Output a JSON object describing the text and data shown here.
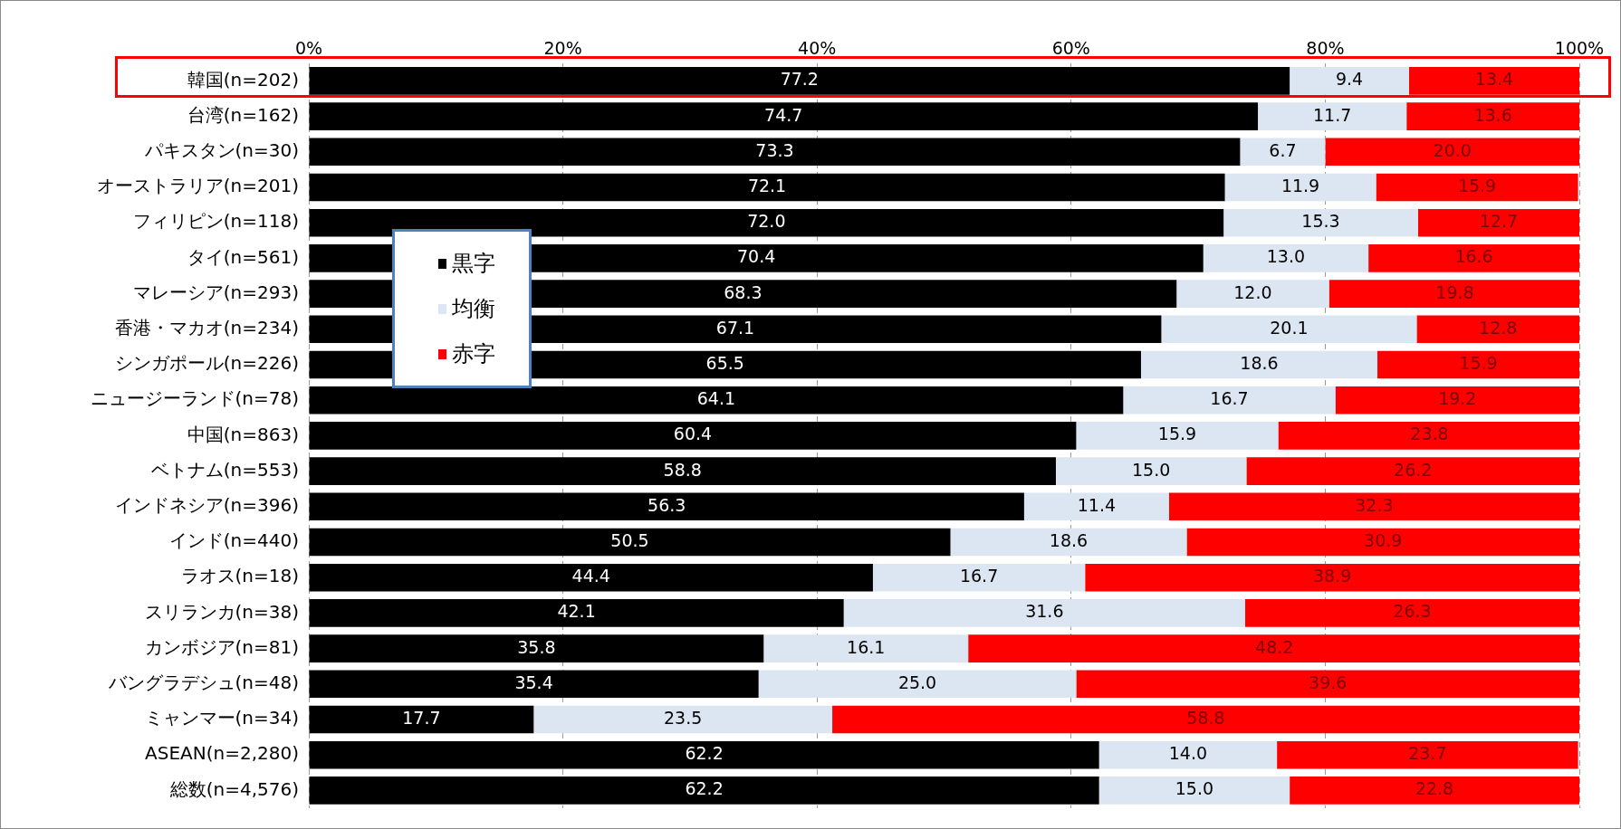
{
  "chart_data": {
    "type": "bar",
    "orientation": "horizontal",
    "stacked": true,
    "categories": [
      "韓国(n=202)",
      "台湾(n=162)",
      "パキスタン(n=30)",
      "オーストラリア(n=201)",
      "フィリピン(n=118)",
      "タイ(n=561)",
      "マレーシア(n=293)",
      "香港・マカオ(n=234)",
      "シンガポール(n=226)",
      "ニュージーランド(n=78)",
      "中国(n=863)",
      "ベトナム(n=553)",
      "インドネシア(n=396)",
      "インド(n=440)",
      "ラオス(n=18)",
      "スリランカ(n=38)",
      "カンボジア(n=81)",
      "バングラデシュ(n=48)",
      "ミャンマー(n=34)",
      "ASEAN(n=2,280)",
      "総数(n=4,576)"
    ],
    "series": [
      {
        "name": "黒字",
        "color": "#000000",
        "values": [
          77.2,
          74.7,
          73.3,
          72.1,
          72.0,
          70.4,
          68.3,
          67.1,
          65.5,
          64.1,
          60.4,
          58.8,
          56.3,
          50.5,
          44.4,
          42.1,
          35.8,
          35.4,
          17.7,
          62.2,
          62.2
        ],
        "value_labels": [
          "77.2",
          "74.7",
          "73.3",
          "72.1",
          "72.0",
          "70.4",
          "68.3",
          "67.1",
          "65.5",
          "64.1",
          "60.4",
          "58.8",
          "56.3",
          "50.5",
          "44.4",
          "42.1",
          "35.8",
          "35.4",
          "17.7",
          "62.2",
          "62.2"
        ]
      },
      {
        "name": "均衡",
        "color": "#dce6f2",
        "values": [
          9.4,
          11.7,
          6.7,
          11.9,
          15.3,
          13.0,
          12.0,
          20.1,
          18.6,
          16.7,
          15.9,
          15.0,
          11.4,
          18.6,
          16.7,
          31.6,
          16.1,
          25.0,
          23.5,
          14.0,
          15.0
        ],
        "value_labels": [
          "9.4",
          "11.7",
          "6.7",
          "11.9",
          "15.3",
          "13.0",
          "12.0",
          "20.1",
          "18.6",
          "16.7",
          "15.9",
          "15.0",
          "11.4",
          "18.6",
          "16.7",
          "31.6",
          "16.1",
          "25.0",
          "23.5",
          "14.0",
          "15.0"
        ]
      },
      {
        "name": "赤字",
        "color": "#ff0000",
        "values": [
          13.4,
          13.6,
          20.0,
          15.9,
          12.7,
          16.6,
          19.8,
          12.8,
          15.9,
          19.2,
          23.8,
          26.2,
          32.3,
          30.9,
          38.9,
          26.3,
          48.2,
          39.6,
          58.8,
          23.7,
          22.8
        ],
        "value_labels": [
          "13.4",
          "13.6",
          "20.0",
          "15.9",
          "12.7",
          "16.6",
          "19.8",
          "12.8",
          "15.9",
          "19.2",
          "23.8",
          "26.2",
          "32.3",
          "30.9",
          "38.9",
          "26.3",
          "48.2",
          "39.6",
          "58.8",
          "23.7",
          "22.8"
        ]
      }
    ],
    "xlim": [
      0,
      100
    ],
    "xticks": [
      {
        "value": 0,
        "label": "0%"
      },
      {
        "value": 20,
        "label": "20%"
      },
      {
        "value": 40,
        "label": "40%"
      },
      {
        "value": 60,
        "label": "60%"
      },
      {
        "value": 80,
        "label": "80%"
      },
      {
        "value": 100,
        "label": "100%"
      }
    ],
    "grid": "x",
    "legend": "top left"
  }
}
